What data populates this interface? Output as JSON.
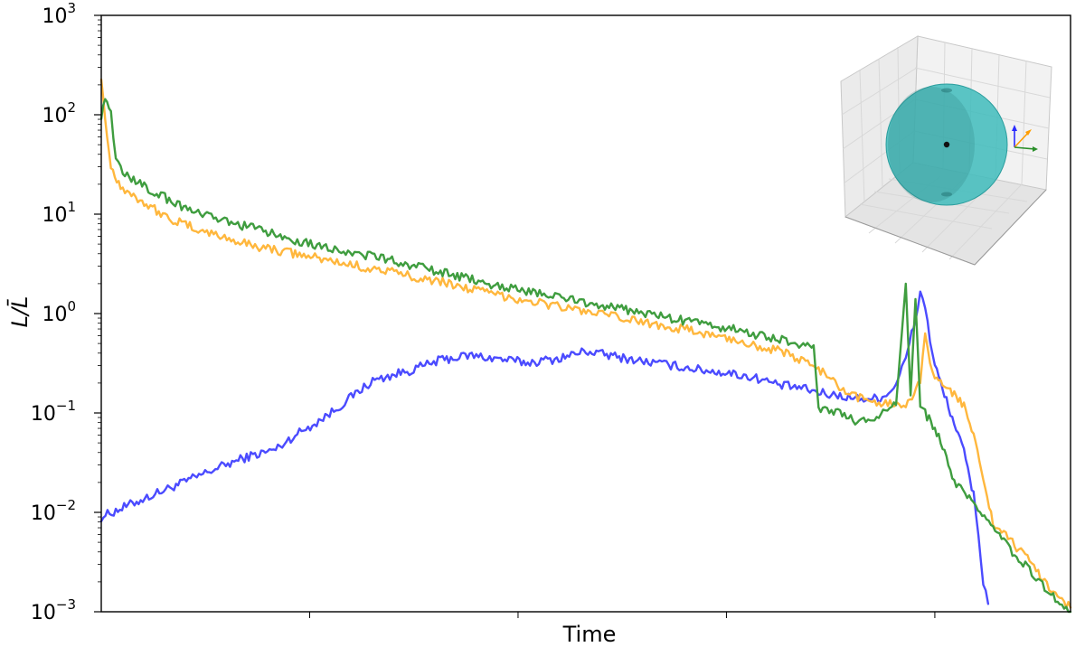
{
  "chart_data": {
    "type": "line",
    "title": "",
    "xlabel": "Time",
    "ylabel": "L/L̄",
    "y_scale": "log",
    "x_scale": "log",
    "ylim": [
      0.001,
      1000
    ],
    "y_ticks": [
      {
        "base": "10",
        "exp": "3",
        "value": 1000
      },
      {
        "base": "10",
        "exp": "2",
        "value": 100
      },
      {
        "base": "10",
        "exp": "1",
        "value": 10
      },
      {
        "base": "10",
        "exp": "0",
        "value": 1
      },
      {
        "base": "10",
        "exp": "−1",
        "value": 0.1
      },
      {
        "base": "10",
        "exp": "−2",
        "value": 0.01
      },
      {
        "base": "10",
        "exp": "−3",
        "value": 0.001
      }
    ],
    "x_tick_labels": [],
    "grid": false,
    "legend": "none",
    "inset": "3D sphere with small axis triad (top-right)",
    "series": [
      {
        "color": "#4b4bff",
        "x": [
          0,
          0.03,
          0.06,
          0.09,
          0.12,
          0.15,
          0.18,
          0.2,
          0.22,
          0.24,
          0.26,
          0.28,
          0.3,
          0.32,
          0.35,
          0.38,
          0.41,
          0.44,
          0.47,
          0.5,
          0.53,
          0.56,
          0.59,
          0.62,
          0.65,
          0.68,
          0.7,
          0.72,
          0.74,
          0.76,
          0.78,
          0.8,
          0.81,
          0.82,
          0.83,
          0.84,
          0.845,
          0.85,
          0.855,
          0.86,
          0.87,
          0.88,
          0.89,
          0.9,
          0.905,
          0.91,
          0.915
        ],
        "values": [
          0.009,
          0.012,
          0.016,
          0.021,
          0.028,
          0.036,
          0.043,
          0.06,
          0.078,
          0.105,
          0.15,
          0.21,
          0.24,
          0.27,
          0.34,
          0.38,
          0.35,
          0.32,
          0.35,
          0.42,
          0.37,
          0.33,
          0.3,
          0.27,
          0.25,
          0.22,
          0.19,
          0.18,
          0.16,
          0.15,
          0.14,
          0.14,
          0.15,
          0.2,
          0.35,
          0.9,
          1.6,
          1.2,
          0.55,
          0.3,
          0.15,
          0.08,
          0.04,
          0.015,
          0.006,
          0.002,
          0.0012
        ]
      },
      {
        "color": "#ffb73d",
        "x": [
          0,
          0.004,
          0.01,
          0.02,
          0.04,
          0.07,
          0.1,
          0.15,
          0.2,
          0.25,
          0.3,
          0.35,
          0.4,
          0.45,
          0.5,
          0.55,
          0.6,
          0.65,
          0.7,
          0.74,
          0.77,
          0.8,
          0.83,
          0.845,
          0.85,
          0.855,
          0.86,
          0.87,
          0.88,
          0.89,
          0.9,
          0.91,
          0.92,
          0.94,
          0.96,
          0.98,
          1.0
        ],
        "values": [
          250,
          90,
          30,
          19,
          14,
          9,
          7,
          5,
          4,
          3.2,
          2.6,
          2.1,
          1.6,
          1.3,
          1.05,
          0.85,
          0.7,
          0.55,
          0.42,
          0.28,
          0.15,
          0.13,
          0.12,
          0.2,
          0.7,
          0.35,
          0.22,
          0.18,
          0.16,
          0.12,
          0.06,
          0.02,
          0.008,
          0.005,
          0.003,
          0.0017,
          0.0011
        ]
      },
      {
        "color": "#3f9d3f",
        "x": [
          0,
          0.004,
          0.01,
          0.015,
          0.02,
          0.04,
          0.07,
          0.1,
          0.15,
          0.2,
          0.25,
          0.3,
          0.35,
          0.4,
          0.45,
          0.5,
          0.55,
          0.6,
          0.65,
          0.7,
          0.72,
          0.735,
          0.74,
          0.76,
          0.78,
          0.8,
          0.82,
          0.83,
          0.835,
          0.84,
          0.845,
          0.85,
          0.86,
          0.87,
          0.88,
          0.9,
          0.92,
          0.94,
          0.96,
          0.98,
          1.0
        ],
        "values": [
          100,
          140,
          110,
          35,
          28,
          20,
          14,
          10,
          7.5,
          5.5,
          4.3,
          3.4,
          2.6,
          2.0,
          1.6,
          1.3,
          1.05,
          0.85,
          0.7,
          0.55,
          0.5,
          0.48,
          0.11,
          0.1,
          0.08,
          0.09,
          0.12,
          2.0,
          0.15,
          1.4,
          0.12,
          0.1,
          0.07,
          0.04,
          0.02,
          0.012,
          0.007,
          0.004,
          0.0025,
          0.0015,
          0.001
        ]
      }
    ]
  }
}
